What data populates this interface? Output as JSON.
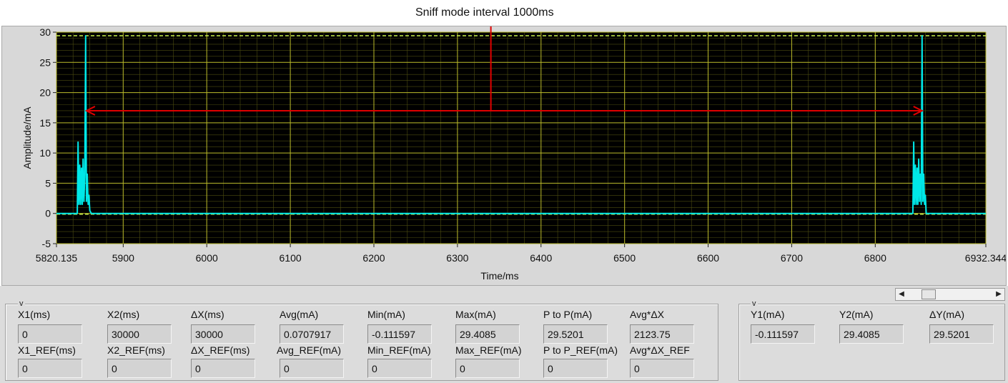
{
  "annotation": {
    "label": "Sniff mode interval 1000ms",
    "line_color": "#e00000"
  },
  "chart_data": {
    "type": "line",
    "title": "",
    "xlabel": "Time/ms",
    "ylabel": "Amplitude/mA",
    "xlim": [
      5820.135,
      6932.344
    ],
    "ylim": [
      -5,
      30
    ],
    "x_ticks": [
      5820.135,
      5900,
      6000,
      6100,
      6200,
      6300,
      6400,
      6500,
      6600,
      6700,
      6800,
      6932.344
    ],
    "x_tick_labels": [
      "5820.135",
      "5900",
      "6000",
      "6100",
      "6200",
      "6300",
      "6400",
      "6500",
      "6600",
      "6700",
      "6800",
      "6932.344"
    ],
    "y_ticks": [
      -5,
      0,
      5,
      10,
      15,
      20,
      25,
      30
    ],
    "grid": true,
    "background": "#000000",
    "grid_color": "#8c8c1e",
    "series": [
      {
        "color": "#00e8e8",
        "x": [
          5820.135,
          5845,
          5846,
          5847,
          5848,
          5849,
          5850,
          5851,
          5852,
          5853,
          5854,
          5855,
          5856,
          5857,
          5858,
          5859,
          5860,
          5861,
          5862,
          5863,
          6845,
          6846,
          6847,
          6848,
          6849,
          6850,
          6851,
          6852,
          6853,
          6854,
          6855,
          6856,
          6857,
          6858,
          6859,
          6860,
          6861,
          6932.344
        ],
        "y": [
          0,
          0,
          11.8,
          1.5,
          8,
          1.5,
          7.5,
          1.5,
          9,
          2,
          6.5,
          29.4,
          2,
          6.5,
          1.5,
          3,
          0.5,
          0.2,
          0,
          0,
          0,
          11.8,
          1.5,
          8,
          1.5,
          7.5,
          1.5,
          9,
          2,
          6.5,
          1.5,
          29.4,
          2,
          6.5,
          1.5,
          3,
          0,
          0
        ]
      }
    ],
    "cursors": [
      {
        "y": 29.4085,
        "style": "dashed",
        "color": "#c8f04a"
      },
      {
        "y": -0.111597,
        "style": "dashed",
        "color": "#c8f04a"
      }
    ],
    "annotation_arrow": {
      "x_start": 5856,
      "x_end": 6856,
      "y": 17,
      "stem_x": 6340,
      "label": "Sniff mode interval 1000ms"
    }
  },
  "stats": {
    "group_label": "v",
    "row1": [
      {
        "label": "X1(ms)",
        "value": "0"
      },
      {
        "label": "X2(ms)",
        "value": "30000"
      },
      {
        "label": "ΔX(ms)",
        "value": "30000"
      },
      {
        "label": "Avg(mA)",
        "value": "0.0707917"
      },
      {
        "label": "Min(mA)",
        "value": "-0.111597"
      },
      {
        "label": "Max(mA)",
        "value": "29.4085"
      },
      {
        "label": "P to P(mA)",
        "value": "29.5201"
      },
      {
        "label": "Avg*ΔX",
        "value": "2123.75"
      }
    ],
    "row2": [
      {
        "label": "X1_REF(ms)",
        "value": "0"
      },
      {
        "label": "X2_REF(ms)",
        "value": "0"
      },
      {
        "label": "ΔX_REF(ms)",
        "value": "0"
      },
      {
        "label": "Avg_REF(mA)",
        "value": "0"
      },
      {
        "label": "Min_REF(mA)",
        "value": "0"
      },
      {
        "label": "Max_REF(mA)",
        "value": "0"
      },
      {
        "label": "P to P_REF(mA)",
        "value": "0"
      },
      {
        "label": "Avg*ΔX_REF",
        "value": "0"
      }
    ]
  },
  "ystats": {
    "group_label": "v",
    "row1": [
      {
        "label": "Y1(mA)",
        "value": "-0.111597"
      },
      {
        "label": "Y2(mA)",
        "value": "29.4085"
      },
      {
        "label": "ΔY(mA)",
        "value": "29.5201"
      }
    ]
  },
  "scrollbar": {
    "left_icon": "◀",
    "right_icon": "▶"
  }
}
